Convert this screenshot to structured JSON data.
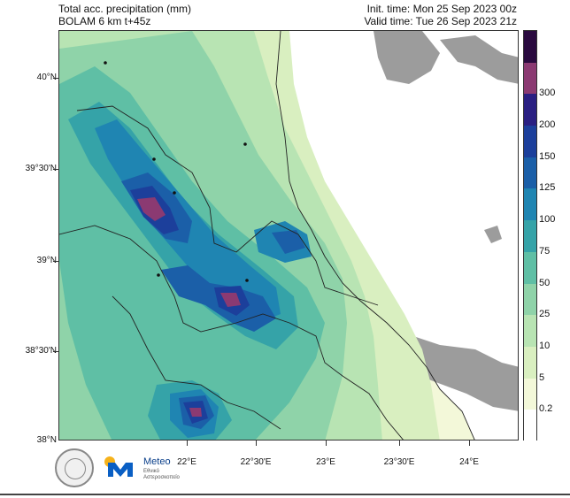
{
  "header": {
    "title_line1": "Total acc. precipitation (mm)",
    "title_line2": "BOLAM 6 km t+45z",
    "init_time": "Init. time: Mon 25 Sep 2023 00z",
    "valid_time": "Valid time: Tue 26 Sep 2023 21z"
  },
  "axes": {
    "lat_labels": [
      "40°N",
      "39°30'N",
      "39°N",
      "38°30'N",
      "38°N"
    ],
    "lon_labels": [
      "22°E",
      "22°30'E",
      "23°E",
      "23°30'E",
      "24°E"
    ]
  },
  "colorbar": {
    "levels": [
      "0.2",
      "5",
      "10",
      "25",
      "50",
      "75",
      "100",
      "125",
      "150",
      "200",
      "300"
    ],
    "colors": [
      "#ffffff",
      "#f3f8d9",
      "#d9efc0",
      "#b8e4b3",
      "#8fd3a9",
      "#5fbfa5",
      "#35a3a8",
      "#1f85b2",
      "#1b5fa8",
      "#1c3f9b",
      "#2a1f82",
      "#8b3a72",
      "#2a0a3f"
    ]
  },
  "map": {
    "land_base": "#f3f8d9",
    "sea_fill": "#9c9c9c",
    "sea_no_data": "#ffffff"
  },
  "footer": {
    "brand": "Meteo",
    "sub_line1": "Εθνικό",
    "sub_line2": "Αστεροσκοπείο"
  }
}
